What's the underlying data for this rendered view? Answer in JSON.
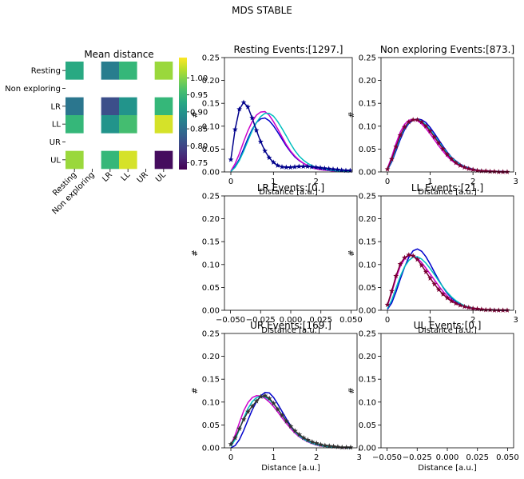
{
  "figure": {
    "title": "MDS STABLE"
  },
  "chart_data": [
    {
      "type": "heatmap",
      "title": "Mean distance",
      "categories": [
        "Resting",
        "Non exploring",
        "LR",
        "LL",
        "UR",
        "UL"
      ],
      "values": [
        [
          0.93,
          null,
          0.87,
          0.95,
          null,
          1.01
        ],
        [
          null,
          null,
          null,
          null,
          null,
          null
        ],
        [
          0.86,
          null,
          0.81,
          0.9,
          null,
          0.95
        ],
        [
          0.95,
          null,
          0.9,
          0.96,
          null,
          1.04
        ],
        [
          null,
          null,
          null,
          null,
          null,
          null
        ],
        [
          1.01,
          null,
          0.95,
          1.04,
          null,
          0.74
        ]
      ],
      "colorbar": {
        "min": 0.73,
        "max": 1.06,
        "ticks": [
          "0.75",
          "0.80",
          "0.85",
          "0.90",
          "0.95",
          "1.00"
        ]
      },
      "colormap": "viridis"
    },
    {
      "type": "line",
      "title": "Resting Events:[1297.]",
      "xlabel": "Distance [a.u.]",
      "ylabel": "#",
      "xlim": [
        -0.15,
        2.85
      ],
      "ylim": [
        0,
        0.25
      ],
      "xticks": [
        "0",
        "1",
        "2"
      ],
      "yticks": [
        "0.00",
        "0.05",
        "0.10",
        "0.15",
        "0.20",
        "0.25"
      ],
      "x": [
        0,
        0.1,
        0.2,
        0.3,
        0.4,
        0.5,
        0.6,
        0.7,
        0.8,
        0.9,
        1.0,
        1.1,
        1.2,
        1.3,
        1.4,
        1.5,
        1.6,
        1.7,
        1.8,
        1.9,
        2.0,
        2.1,
        2.2,
        2.3,
        2.4,
        2.5,
        2.6,
        2.7,
        2.8
      ],
      "series": [
        {
          "color": "#0000cc",
          "values": [
            0.001,
            0.012,
            0.028,
            0.05,
            0.073,
            0.093,
            0.108,
            0.116,
            0.118,
            0.112,
            0.101,
            0.087,
            0.072,
            0.057,
            0.044,
            0.033,
            0.025,
            0.019,
            0.014,
            0.011,
            0.008,
            0.006,
            0.005,
            0.004,
            0.003,
            0.002,
            0.002,
            0.001,
            0.001
          ]
        },
        {
          "color": "#cc00cc",
          "values": [
            0.002,
            0.018,
            0.04,
            0.066,
            0.09,
            0.11,
            0.124,
            0.131,
            0.132,
            0.124,
            0.11,
            0.094,
            0.077,
            0.06,
            0.046,
            0.035,
            0.026,
            0.019,
            0.014,
            0.01,
            0.007,
            0.005,
            0.004,
            0.003,
            0.002,
            0.002,
            0.001,
            0.001,
            0.001
          ]
        },
        {
          "color": "#00bfbf",
          "values": [
            0.001,
            0.01,
            0.025,
            0.045,
            0.068,
            0.09,
            0.108,
            0.121,
            0.128,
            0.128,
            0.122,
            0.11,
            0.095,
            0.079,
            0.062,
            0.047,
            0.035,
            0.026,
            0.019,
            0.014,
            0.01,
            0.008,
            0.006,
            0.004,
            0.003,
            0.002,
            0.002,
            0.001,
            0.001
          ]
        },
        {
          "color": "#00008b",
          "marker": "star",
          "x": [
            0,
            0.1,
            0.2,
            0.3,
            0.4,
            0.5,
            0.6,
            0.7,
            0.8,
            0.9,
            1.0,
            1.1,
            1.2,
            1.3,
            1.4,
            1.5,
            1.6,
            1.7,
            1.8,
            1.9,
            2.0,
            2.1,
            2.2,
            2.3,
            2.4,
            2.5,
            2.6,
            2.7,
            2.8
          ],
          "values": [
            0.027,
            0.093,
            0.137,
            0.152,
            0.142,
            0.118,
            0.091,
            0.066,
            0.046,
            0.031,
            0.021,
            0.014,
            0.011,
            0.01,
            0.01,
            0.011,
            0.012,
            0.012,
            0.012,
            0.011,
            0.01,
            0.009,
            0.008,
            0.007,
            0.006,
            0.005,
            0.004,
            0.003,
            0.003
          ]
        }
      ]
    },
    {
      "type": "line",
      "title": "Non exploring Events:[873.]",
      "xlabel": "Distance [a.u.]",
      "ylabel": "#",
      "xlim": [
        -0.15,
        2.95
      ],
      "ylim": [
        0,
        0.25
      ],
      "xticks": [
        "0",
        "1",
        "2",
        "3"
      ],
      "yticks": [
        "0.00",
        "0.05",
        "0.10",
        "0.15",
        "0.20",
        "0.25"
      ],
      "x": [
        0,
        0.1,
        0.2,
        0.3,
        0.4,
        0.5,
        0.6,
        0.7,
        0.8,
        0.9,
        1.0,
        1.1,
        1.2,
        1.3,
        1.4,
        1.5,
        1.6,
        1.7,
        1.8,
        1.9,
        2.0,
        2.1,
        2.2,
        2.3,
        2.4,
        2.5,
        2.6,
        2.7,
        2.8
      ],
      "series": [
        {
          "color": "#0000cc",
          "values": [
            0.004,
            0.022,
            0.046,
            0.071,
            0.092,
            0.106,
            0.113,
            0.116,
            0.114,
            0.108,
            0.097,
            0.084,
            0.07,
            0.056,
            0.043,
            0.032,
            0.024,
            0.017,
            0.012,
            0.009,
            0.006,
            0.004,
            0.003,
            0.002,
            0.002,
            0.001,
            0.001,
            0.001,
            0.0
          ]
        },
        {
          "color": "#cc00cc",
          "values": [
            0.008,
            0.033,
            0.062,
            0.087,
            0.104,
            0.113,
            0.115,
            0.112,
            0.105,
            0.095,
            0.083,
            0.07,
            0.057,
            0.045,
            0.034,
            0.025,
            0.018,
            0.013,
            0.009,
            0.006,
            0.004,
            0.003,
            0.002,
            0.001,
            0.001,
            0.001,
            0.0,
            0.0,
            0.0
          ]
        },
        {
          "color": "#00bfbf",
          "values": [
            0.005,
            0.025,
            0.051,
            0.076,
            0.096,
            0.108,
            0.114,
            0.115,
            0.111,
            0.103,
            0.092,
            0.079,
            0.066,
            0.053,
            0.041,
            0.031,
            0.023,
            0.016,
            0.011,
            0.008,
            0.005,
            0.004,
            0.003,
            0.002,
            0.001,
            0.001,
            0.001,
            0.0,
            0.0
          ]
        },
        {
          "color": "#7a0033",
          "marker": "star",
          "values": [
            0.006,
            0.028,
            0.055,
            0.08,
            0.098,
            0.109,
            0.114,
            0.114,
            0.109,
            0.1,
            0.089,
            0.076,
            0.063,
            0.05,
            0.038,
            0.028,
            0.02,
            0.014,
            0.01,
            0.007,
            0.005,
            0.003,
            0.002,
            0.002,
            0.001,
            0.001,
            0.0,
            0.0,
            0.0
          ]
        }
      ]
    },
    {
      "type": "line",
      "title": "LR Events:[0.]",
      "xlabel": "Distance [a.u.]",
      "ylabel": "#",
      "xlim": [
        -0.055,
        0.055
      ],
      "ylim": [
        0,
        0.25
      ],
      "xticks": [
        "−0.050",
        "−0.025",
        "0.000",
        "0.025",
        "0.050"
      ],
      "yticks": [
        "0.00",
        "0.05",
        "0.10",
        "0.15",
        "0.20",
        "0.25"
      ],
      "series": []
    },
    {
      "type": "line",
      "title": "LL Events:[21.]",
      "xlabel": "Distance [a.u.]",
      "ylabel": "#",
      "xlim": [
        -0.15,
        2.95
      ],
      "ylim": [
        0,
        0.25
      ],
      "xticks": [
        "0",
        "1",
        "2",
        "3"
      ],
      "yticks": [
        "0.00",
        "0.05",
        "0.10",
        "0.15",
        "0.20",
        "0.25"
      ],
      "x": [
        0,
        0.1,
        0.2,
        0.3,
        0.4,
        0.5,
        0.6,
        0.7,
        0.8,
        0.9,
        1.0,
        1.1,
        1.2,
        1.3,
        1.4,
        1.5,
        1.6,
        1.7,
        1.8,
        1.9,
        2.0,
        2.1,
        2.2,
        2.3,
        2.4,
        2.5,
        2.6,
        2.7,
        2.8
      ],
      "series": [
        {
          "color": "#0000cc",
          "values": [
            0.002,
            0.016,
            0.04,
            0.068,
            0.094,
            0.116,
            0.13,
            0.134,
            0.129,
            0.117,
            0.101,
            0.083,
            0.066,
            0.05,
            0.037,
            0.027,
            0.019,
            0.013,
            0.009,
            0.006,
            0.004,
            0.003,
            0.002,
            0.001,
            0.001,
            0.001,
            0.0,
            0.0,
            0.0
          ]
        },
        {
          "color": "#cc00cc",
          "values": [
            0.01,
            0.038,
            0.07,
            0.096,
            0.112,
            0.12,
            0.12,
            0.114,
            0.104,
            0.092,
            0.079,
            0.066,
            0.053,
            0.041,
            0.031,
            0.023,
            0.016,
            0.011,
            0.008,
            0.005,
            0.004,
            0.002,
            0.002,
            0.001,
            0.001,
            0.0,
            0.0,
            0.0,
            0.0
          ]
        },
        {
          "color": "#00bfbf",
          "values": [
            0.004,
            0.022,
            0.048,
            0.074,
            0.095,
            0.109,
            0.116,
            0.117,
            0.112,
            0.103,
            0.091,
            0.078,
            0.064,
            0.051,
            0.039,
            0.029,
            0.021,
            0.015,
            0.01,
            0.007,
            0.005,
            0.003,
            0.002,
            0.001,
            0.001,
            0.001,
            0.0,
            0.0,
            0.0
          ]
        },
        {
          "color": "#7a0033",
          "marker": "star",
          "values": [
            0.012,
            0.042,
            0.075,
            0.101,
            0.115,
            0.121,
            0.119,
            0.111,
            0.098,
            0.084,
            0.07,
            0.057,
            0.045,
            0.035,
            0.027,
            0.02,
            0.015,
            0.011,
            0.008,
            0.006,
            0.004,
            0.003,
            0.002,
            0.001,
            0.001,
            0.0,
            0.0,
            0.0,
            0.0
          ]
        }
      ]
    },
    {
      "type": "line",
      "title": "UR Events:[169.]",
      "xlabel": "Distance [a.u.]",
      "ylabel": "#",
      "xlim": [
        -0.15,
        2.95
      ],
      "ylim": [
        0,
        0.25
      ],
      "xticks": [
        "0",
        "1",
        "2",
        "3"
      ],
      "yticks": [
        "0.00",
        "0.05",
        "0.10",
        "0.15",
        "0.20",
        "0.25"
      ],
      "x": [
        0,
        0.1,
        0.2,
        0.3,
        0.4,
        0.5,
        0.6,
        0.7,
        0.8,
        0.9,
        1.0,
        1.1,
        1.2,
        1.3,
        1.4,
        1.5,
        1.6,
        1.7,
        1.8,
        1.9,
        2.0,
        2.1,
        2.2,
        2.3,
        2.4,
        2.5,
        2.6,
        2.7,
        2.8
      ],
      "series": [
        {
          "color": "#0000cc",
          "values": [
            0.0,
            0.005,
            0.018,
            0.038,
            0.061,
            0.083,
            0.101,
            0.114,
            0.121,
            0.12,
            0.11,
            0.095,
            0.079,
            0.063,
            0.048,
            0.036,
            0.027,
            0.02,
            0.014,
            0.01,
            0.007,
            0.005,
            0.004,
            0.003,
            0.002,
            0.001,
            0.001,
            0.001,
            0.0
          ]
        },
        {
          "color": "#cc00cc",
          "values": [
            0.006,
            0.028,
            0.055,
            0.081,
            0.099,
            0.11,
            0.114,
            0.113,
            0.108,
            0.1,
            0.09,
            0.078,
            0.065,
            0.053,
            0.042,
            0.032,
            0.024,
            0.018,
            0.013,
            0.009,
            0.006,
            0.004,
            0.003,
            0.002,
            0.001,
            0.001,
            0.0,
            0.0,
            0.0
          ]
        },
        {
          "color": "#00bfbf",
          "values": [
            0.003,
            0.018,
            0.04,
            0.065,
            0.086,
            0.101,
            0.11,
            0.113,
            0.111,
            0.105,
            0.096,
            0.084,
            0.071,
            0.058,
            0.046,
            0.035,
            0.026,
            0.019,
            0.014,
            0.01,
            0.007,
            0.005,
            0.003,
            0.002,
            0.002,
            0.001,
            0.001,
            0.0,
            0.0
          ]
        },
        {
          "color": "#333333",
          "marker": "star",
          "values": [
            0.008,
            0.022,
            0.042,
            0.062,
            0.079,
            0.091,
            0.102,
            0.112,
            0.114,
            0.108,
            0.097,
            0.084,
            0.071,
            0.058,
            0.047,
            0.037,
            0.029,
            0.022,
            0.017,
            0.013,
            0.01,
            0.007,
            0.005,
            0.004,
            0.003,
            0.002,
            0.001,
            0.001,
            0.001
          ]
        }
      ]
    },
    {
      "type": "line",
      "title": "UL Events:[0.]",
      "xlabel": "Distance [a.u.]",
      "ylabel": "#",
      "xlim": [
        -0.055,
        0.055
      ],
      "ylim": [
        0,
        0.25
      ],
      "xticks": [
        "−0.050",
        "−0.025",
        "0.000",
        "0.025",
        "0.050"
      ],
      "yticks": [
        "0.00",
        "0.05",
        "0.10",
        "0.15",
        "0.20",
        "0.25"
      ],
      "series": []
    }
  ]
}
